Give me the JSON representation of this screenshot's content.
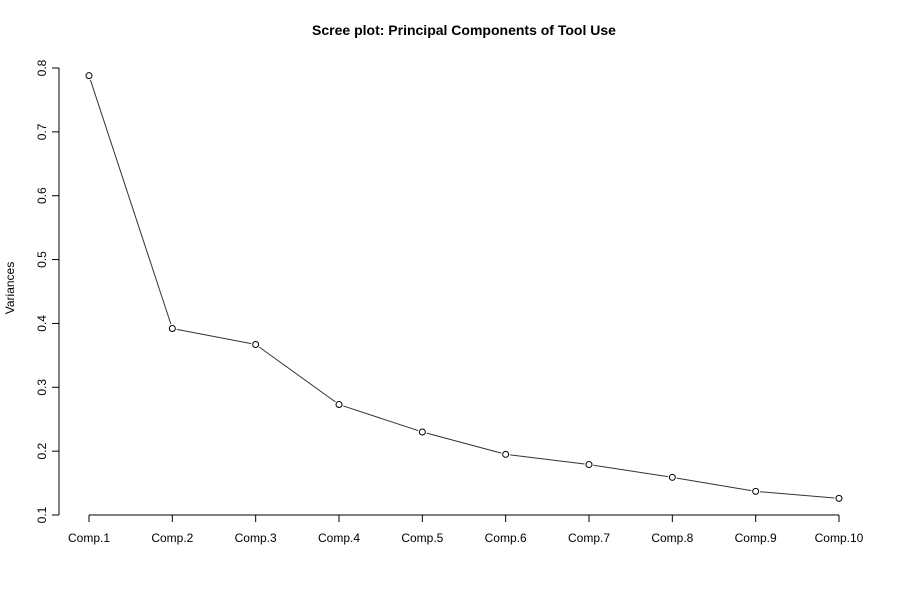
{
  "chart_data": {
    "type": "line",
    "title": "Scree plot: Principal Components of Tool Use",
    "xlabel": "",
    "ylabel": "Variances",
    "categories": [
      "Comp.1",
      "Comp.2",
      "Comp.3",
      "Comp.4",
      "Comp.5",
      "Comp.6",
      "Comp.7",
      "Comp.8",
      "Comp.9",
      "Comp.10"
    ],
    "values": [
      0.788,
      0.392,
      0.367,
      0.273,
      0.23,
      0.195,
      0.179,
      0.159,
      0.137,
      0.126
    ],
    "yticks": [
      "0.1",
      "0.2",
      "0.3",
      "0.4",
      "0.5",
      "0.6",
      "0.7",
      "0.8"
    ],
    "ylim": [
      0.1,
      0.8
    ],
    "grid": false,
    "legend": "none",
    "marker": "open-circle",
    "line_color": "#333333"
  }
}
